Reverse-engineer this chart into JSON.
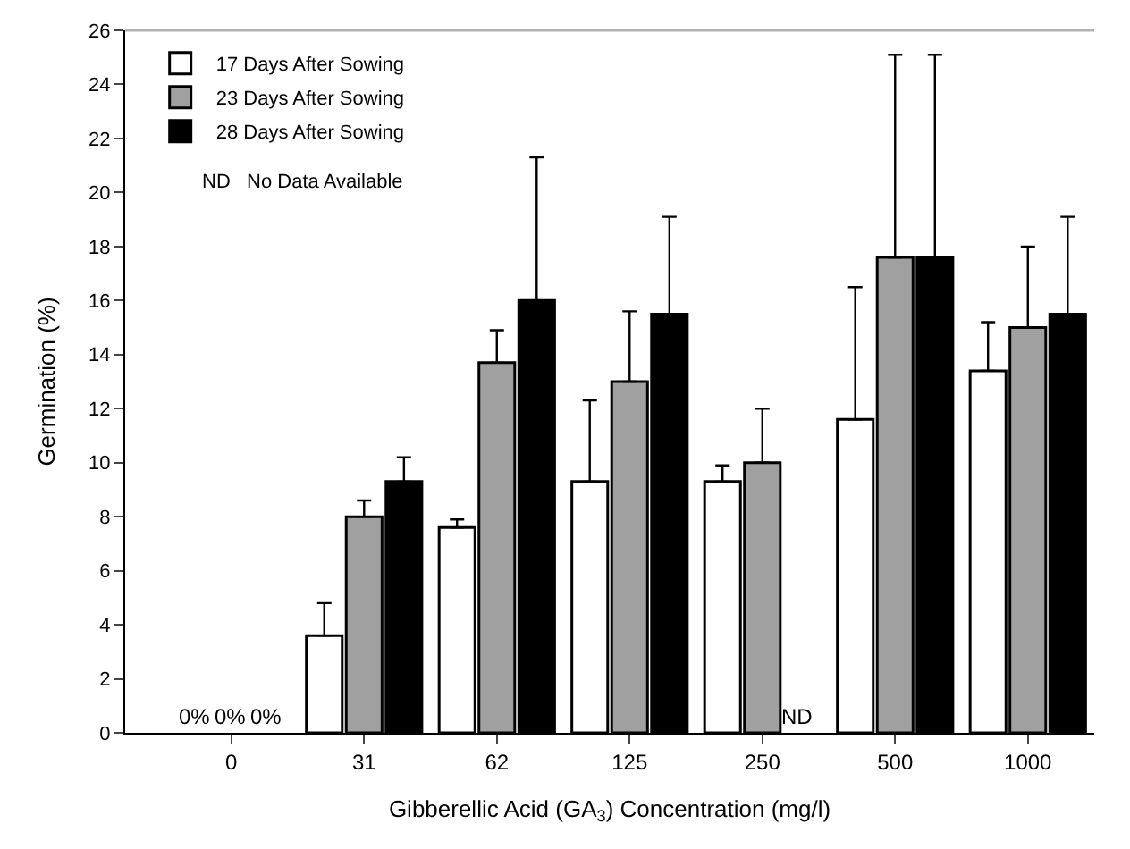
{
  "chart_data": {
    "type": "bar",
    "xlabel": "Gibberellic Acid (GA$_{3}$) Concentration (mg/l)",
    "ylabel": "Germination (%)",
    "categories": [
      "0",
      "31",
      "62",
      "125",
      "250",
      "500",
      "1000"
    ],
    "series": [
      {
        "name": "17 Days After Sowing",
        "color": "#ffffff",
        "values": [
          null,
          3.6,
          7.6,
          9.3,
          9.3,
          11.6,
          13.4
        ],
        "errors": [
          null,
          [
            3.6,
            4.8
          ],
          [
            7.6,
            7.9
          ],
          [
            9.3,
            12.3
          ],
          [
            9.3,
            9.9
          ],
          [
            11.6,
            16.5
          ],
          [
            13.4,
            15.2
          ]
        ]
      },
      {
        "name": "23 Days After Sowing",
        "color": "#a0a0a0",
        "values": [
          null,
          8.0,
          13.7,
          13.0,
          10.0,
          17.6,
          15.0
        ],
        "errors": [
          null,
          [
            8.0,
            8.6
          ],
          [
            13.7,
            14.9
          ],
          [
            13.0,
            15.6
          ],
          [
            10.0,
            12.0
          ],
          [
            17.6,
            25.1
          ],
          [
            15.0,
            18.0
          ]
        ]
      },
      {
        "name": "28 Days After Sowing",
        "color": "#000000",
        "values": [
          null,
          9.3,
          16.0,
          15.5,
          null,
          17.6,
          15.5
        ],
        "errors": [
          null,
          [
            9.3,
            10.2
          ],
          [
            16.0,
            21.3
          ],
          [
            15.5,
            19.1
          ],
          null,
          [
            17.6,
            25.1
          ],
          [
            15.5,
            19.1
          ]
        ]
      }
    ],
    "annotations": [
      "0%",
      "0%",
      "0%",
      {
        "text": "ND",
        "x": "250",
        "y": 0
      },
      "ND   No Data Available"
    ],
    "ylim": [
      0,
      26
    ],
    "yticks": [
      0,
      2,
      4,
      6,
      8,
      10,
      12,
      14,
      16,
      18,
      20,
      22,
      24,
      26
    ],
    "legend": "top left",
    "grid": false
  }
}
